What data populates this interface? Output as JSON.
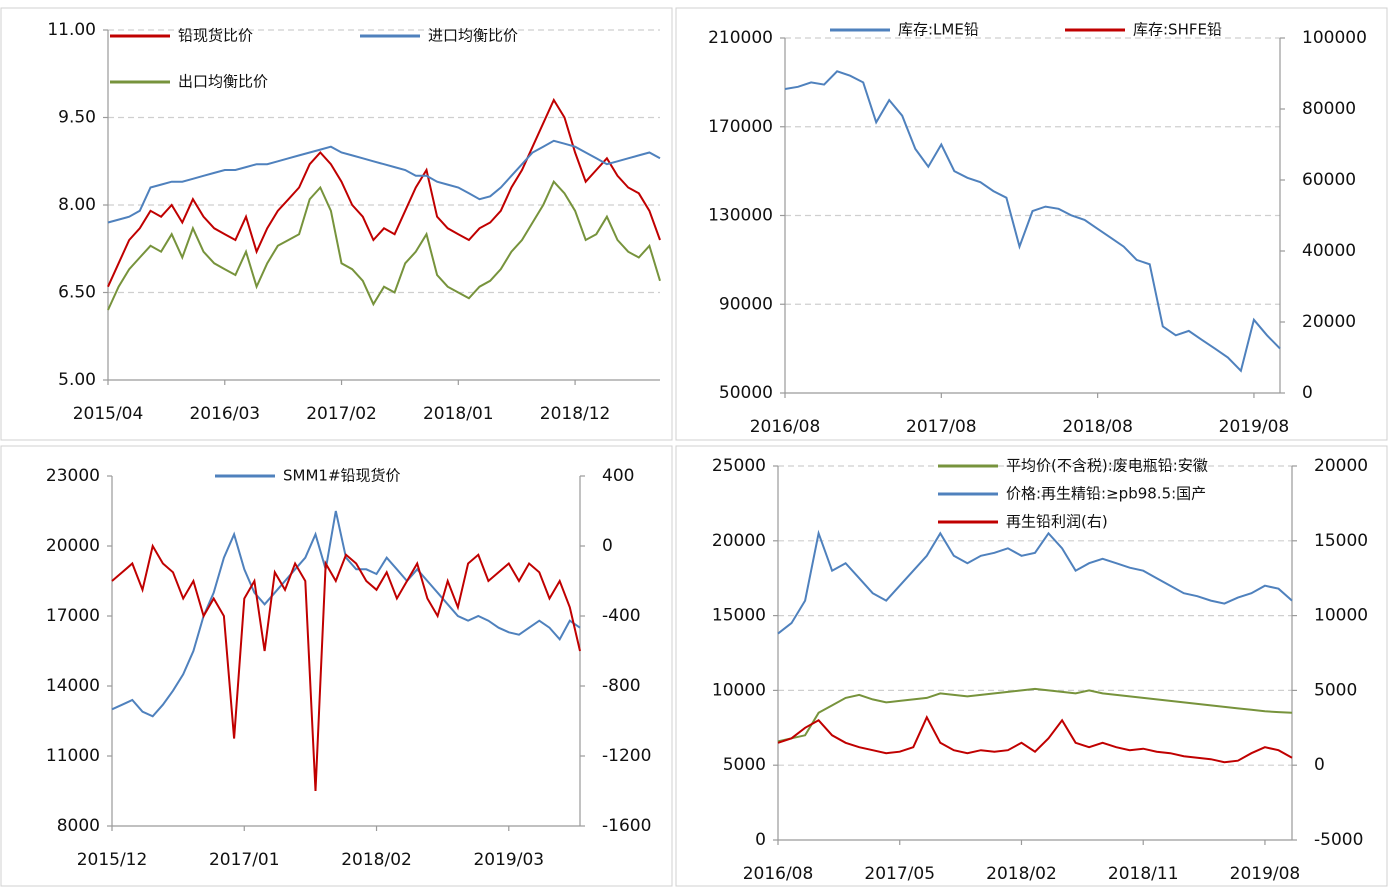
{
  "chart_data": [
    {
      "type": "line",
      "x": [
        "2015/04",
        "2015/05",
        "2015/06",
        "2015/07",
        "2015/08",
        "2015/09",
        "2015/10",
        "2015/11",
        "2015/12",
        "2016/01",
        "2016/02",
        "2016/03",
        "2016/04",
        "2016/05",
        "2016/06",
        "2016/07",
        "2016/08",
        "2016/09",
        "2016/10",
        "2016/11",
        "2016/12",
        "2017/01",
        "2017/02",
        "2017/03",
        "2017/04",
        "2017/05",
        "2017/06",
        "2017/07",
        "2017/08",
        "2017/09",
        "2017/10",
        "2017/11",
        "2017/12",
        "2018/01",
        "2018/02",
        "2018/03",
        "2018/04",
        "2018/05",
        "2018/06",
        "2018/07",
        "2018/08",
        "2018/09",
        "2018/10",
        "2018/11",
        "2018/12",
        "2019/01",
        "2019/02",
        "2019/03",
        "2019/04",
        "2019/05",
        "2019/06",
        "2019/07",
        "2019/08"
      ],
      "xticks": [
        "2015/04",
        "2016/03",
        "2017/02",
        "2018/01",
        "2018/12"
      ],
      "ylim": [
        5,
        11
      ],
      "yticks": [
        {
          "value": 5,
          "label": "5.00"
        },
        {
          "value": 6.5,
          "label": "6.50"
        },
        {
          "value": 8,
          "label": "8.00"
        },
        {
          "value": 9.5,
          "label": "9.50"
        },
        {
          "value": 11,
          "label": "11.00"
        }
      ],
      "grid": true,
      "series": [
        {
          "name": "铅现货比价",
          "color": "#c00000",
          "values": [
            6.6,
            7.0,
            7.4,
            7.6,
            7.9,
            7.8,
            8.0,
            7.7,
            8.1,
            7.8,
            7.6,
            7.5,
            7.4,
            7.8,
            7.2,
            7.6,
            7.9,
            8.1,
            8.3,
            8.7,
            8.9,
            8.7,
            8.4,
            8.0,
            7.8,
            7.4,
            7.6,
            7.5,
            7.9,
            8.3,
            8.6,
            7.8,
            7.6,
            7.5,
            7.4,
            7.6,
            7.7,
            7.9,
            8.3,
            8.6,
            9.0,
            9.4,
            9.8,
            9.5,
            8.9,
            8.4,
            8.6,
            8.8,
            8.5,
            8.3,
            8.2,
            7.9,
            7.4
          ]
        },
        {
          "name": "进口均衡比价",
          "color": "#4f81bd",
          "values": [
            7.7,
            7.75,
            7.8,
            7.9,
            8.3,
            8.35,
            8.4,
            8.4,
            8.45,
            8.5,
            8.55,
            8.6,
            8.6,
            8.65,
            8.7,
            8.7,
            8.75,
            8.8,
            8.85,
            8.9,
            8.95,
            9.0,
            8.9,
            8.85,
            8.8,
            8.75,
            8.7,
            8.65,
            8.6,
            8.5,
            8.5,
            8.4,
            8.35,
            8.3,
            8.2,
            8.1,
            8.15,
            8.3,
            8.5,
            8.7,
            8.9,
            9.0,
            9.1,
            9.05,
            9.0,
            8.9,
            8.8,
            8.7,
            8.75,
            8.8,
            8.85,
            8.9,
            8.8
          ]
        },
        {
          "name": "出口均衡比价",
          "color": "#77933c",
          "values": [
            6.2,
            6.6,
            6.9,
            7.1,
            7.3,
            7.2,
            7.5,
            7.1,
            7.6,
            7.2,
            7.0,
            6.9,
            6.8,
            7.2,
            6.6,
            7.0,
            7.3,
            7.4,
            7.5,
            8.1,
            8.3,
            7.9,
            7.0,
            6.9,
            6.7,
            6.3,
            6.6,
            6.5,
            7.0,
            7.2,
            7.5,
            6.8,
            6.6,
            6.5,
            6.4,
            6.6,
            6.7,
            6.9,
            7.2,
            7.4,
            7.7,
            8.0,
            8.4,
            8.2,
            7.9,
            7.4,
            7.5,
            7.8,
            7.4,
            7.2,
            7.1,
            7.3,
            6.7
          ]
        }
      ]
    },
    {
      "type": "line",
      "x": [
        "2016/08",
        "2016/09",
        "2016/10",
        "2016/11",
        "2016/12",
        "2017/01",
        "2017/02",
        "2017/03",
        "2017/04",
        "2017/05",
        "2017/06",
        "2017/07",
        "2017/08",
        "2017/09",
        "2017/10",
        "2017/11",
        "2017/12",
        "2018/01",
        "2018/02",
        "2018/03",
        "2018/04",
        "2018/05",
        "2018/06",
        "2018/07",
        "2018/08",
        "2018/09",
        "2018/10",
        "2018/11",
        "2018/12",
        "2019/01",
        "2019/02",
        "2019/03",
        "2019/04",
        "2019/05",
        "2019/06",
        "2019/07",
        "2019/08",
        "2019/09",
        "2019/10"
      ],
      "xticks": [
        "2016/08",
        "2017/08",
        "2018/08",
        "2019/08"
      ],
      "ylim": [
        50000,
        210000
      ],
      "yticks": [
        50000,
        90000,
        130000,
        170000,
        210000
      ],
      "y2lim": [
        0,
        100000
      ],
      "y2ticks": [
        0,
        20000,
        40000,
        60000,
        80000,
        100000
      ],
      "grid": true,
      "series": [
        {
          "name": "库存:LME铅",
          "color": "#4f81bd",
          "values": [
            187000,
            188000,
            190000,
            189000,
            195000,
            193000,
            190000,
            172000,
            182000,
            175000,
            160000,
            152000,
            162000,
            150000,
            147000,
            145000,
            141000,
            138000,
            116000,
            132000,
            134000,
            133000,
            130000,
            128000,
            124000,
            120000,
            116000,
            110000,
            108000,
            80000,
            76000,
            78000,
            74000,
            70000,
            66000,
            60000,
            83000,
            76000,
            70000
          ]
        },
        {
          "name": "库存:SHFE铅",
          "color": "#c00000",
          "axis": "y2",
          "values": [
            null,
            null,
            null,
            null,
            null,
            null,
            null,
            null,
            null,
            null,
            null,
            null,
            null,
            null,
            null,
            null,
            null,
            null,
            null,
            null,
            null,
            null,
            null,
            null,
            null,
            null,
            null,
            null,
            null,
            null,
            null,
            null,
            null,
            null,
            null,
            null,
            null,
            null,
            null
          ]
        }
      ]
    },
    {
      "type": "line",
      "x": [
        "2015/12",
        "2016/01",
        "2016/02",
        "2016/03",
        "2016/04",
        "2016/05",
        "2016/06",
        "2016/07",
        "2016/08",
        "2016/09",
        "2016/10",
        "2016/11",
        "2016/12",
        "2017/01",
        "2017/02",
        "2017/03",
        "2017/04",
        "2017/05",
        "2017/06",
        "2017/07",
        "2017/08",
        "2017/09",
        "2017/10",
        "2017/11",
        "2017/12",
        "2018/01",
        "2018/02",
        "2018/03",
        "2018/04",
        "2018/05",
        "2018/06",
        "2018/07",
        "2018/08",
        "2018/09",
        "2018/10",
        "2018/11",
        "2018/12",
        "2019/01",
        "2019/02",
        "2019/03",
        "2019/04",
        "2019/05",
        "2019/06",
        "2019/07",
        "2019/08",
        "2019/09",
        "2019/10"
      ],
      "xticks": [
        "2015/12",
        "2017/01",
        "2018/02",
        "2019/03"
      ],
      "ylim": [
        8000,
        23000
      ],
      "yticks": [
        8000,
        11000,
        14000,
        17000,
        20000,
        23000
      ],
      "y2lim": [
        -1600,
        400
      ],
      "y2ticks": [
        -1600,
        -1200,
        -800,
        -400,
        0,
        400
      ],
      "grid": false,
      "series": [
        {
          "name": "SMM1#铅现货价",
          "color": "#4f81bd",
          "values": [
            13000,
            13200,
            13400,
            12900,
            12700,
            13200,
            13800,
            14500,
            15500,
            17000,
            18000,
            19500,
            20500,
            19000,
            18000,
            17500,
            18000,
            18500,
            19000,
            19500,
            20500,
            19000,
            21500,
            19500,
            19000,
            19000,
            18800,
            19500,
            19000,
            18500,
            19000,
            18500,
            18000,
            17500,
            17000,
            16800,
            17000,
            16800,
            16500,
            16300,
            16200,
            16500,
            16800,
            16500,
            16000,
            16800,
            16500
          ]
        },
        {
          "color": "#c00000",
          "axis": "y2",
          "values": [
            -200,
            -150,
            -100,
            -250,
            0,
            -100,
            -150,
            -300,
            -200,
            -400,
            -300,
            -400,
            -1100,
            -300,
            -200,
            -600,
            -150,
            -250,
            -100,
            -200,
            -1400,
            -100,
            -200,
            -50,
            -100,
            -200,
            -250,
            -150,
            -300,
            -200,
            -100,
            -300,
            -400,
            -200,
            -350,
            -100,
            -50,
            -200,
            -150,
            -100,
            -200,
            -100,
            -150,
            -300,
            -200,
            -350,
            -600
          ]
        }
      ]
    },
    {
      "type": "line",
      "x": [
        "2016/08",
        "2016/09",
        "2016/10",
        "2016/11",
        "2016/12",
        "2017/01",
        "2017/02",
        "2017/03",
        "2017/04",
        "2017/05",
        "2017/06",
        "2017/07",
        "2017/08",
        "2017/09",
        "2017/10",
        "2017/11",
        "2017/12",
        "2018/01",
        "2018/02",
        "2018/03",
        "2018/04",
        "2018/05",
        "2018/06",
        "2018/07",
        "2018/08",
        "2018/09",
        "2018/10",
        "2018/11",
        "2018/12",
        "2019/01",
        "2019/02",
        "2019/03",
        "2019/04",
        "2019/05",
        "2019/06",
        "2019/07",
        "2019/08",
        "2019/09",
        "2019/10"
      ],
      "xticks": [
        "2016/08",
        "2017/05",
        "2018/02",
        "2018/11",
        "2019/08"
      ],
      "ylim": [
        0,
        25000
      ],
      "yticks": [
        0,
        5000,
        10000,
        15000,
        20000,
        25000
      ],
      "y2lim": [
        -5000,
        20000
      ],
      "y2ticks": [
        -5000,
        0,
        5000,
        10000,
        15000,
        20000
      ],
      "grid": true,
      "series": [
        {
          "name": "平均价(不含税):废电瓶铅:安徽",
          "color": "#77933c",
          "values": [
            6600,
            6800,
            7000,
            8500,
            9000,
            9500,
            9700,
            9400,
            9200,
            9300,
            9400,
            9500,
            9800,
            9700,
            9600,
            9700,
            9800,
            9900,
            10000,
            10100,
            10000,
            9900,
            9800,
            10000,
            9800,
            9700,
            9600,
            9500,
            9400,
            9300,
            9200,
            9100,
            9000,
            8900,
            8800,
            8700,
            8600,
            8550,
            8500
          ]
        },
        {
          "name": "价格:再生精铅:≥pb98.5:国产",
          "color": "#4f81bd",
          "values": [
            13800,
            14500,
            16000,
            20500,
            18000,
            18500,
            17500,
            16500,
            16000,
            17000,
            18000,
            19000,
            20500,
            19000,
            18500,
            19000,
            19200,
            19500,
            19000,
            19200,
            20500,
            19500,
            18000,
            18500,
            18800,
            18500,
            18200,
            18000,
            17500,
            17000,
            16500,
            16300,
            16000,
            15800,
            16200,
            16500,
            17000,
            16800,
            16000
          ]
        },
        {
          "name": "再生铅利润(右)",
          "color": "#c00000",
          "axis": "y2",
          "values": [
            1500,
            1800,
            2500,
            3000,
            2000,
            1500,
            1200,
            1000,
            800,
            900,
            1200,
            3200,
            1500,
            1000,
            800,
            1000,
            900,
            1000,
            1500,
            900,
            1800,
            3000,
            1500,
            1200,
            1500,
            1200,
            1000,
            1100,
            900,
            800,
            600,
            500,
            400,
            200,
            300,
            800,
            1200,
            1000,
            500
          ]
        }
      ]
    }
  ]
}
